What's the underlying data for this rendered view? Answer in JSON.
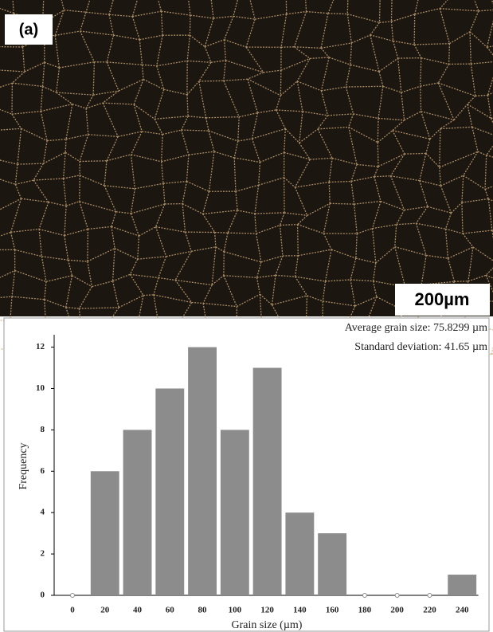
{
  "micrograph": {
    "label": "(a)",
    "scale_bar": "200µm"
  },
  "chart_data": {
    "type": "bar",
    "annotations": [
      "Average grain size: 75.8299 µm",
      "Standard deviation: 41.65 µm"
    ],
    "xlabel": "Grain size (µm)",
    "ylabel": "Frequency",
    "categories": [
      0,
      20,
      40,
      60,
      80,
      100,
      120,
      140,
      160,
      180,
      200,
      220,
      240
    ],
    "values": [
      0,
      6,
      8,
      10,
      12,
      8,
      11,
      4,
      3,
      0,
      0,
      0,
      1
    ],
    "color": "#8c8c8c",
    "ylim": [
      0,
      12.6
    ],
    "yticks": [
      0,
      2,
      4,
      6,
      8,
      10,
      12
    ],
    "grid": false
  }
}
